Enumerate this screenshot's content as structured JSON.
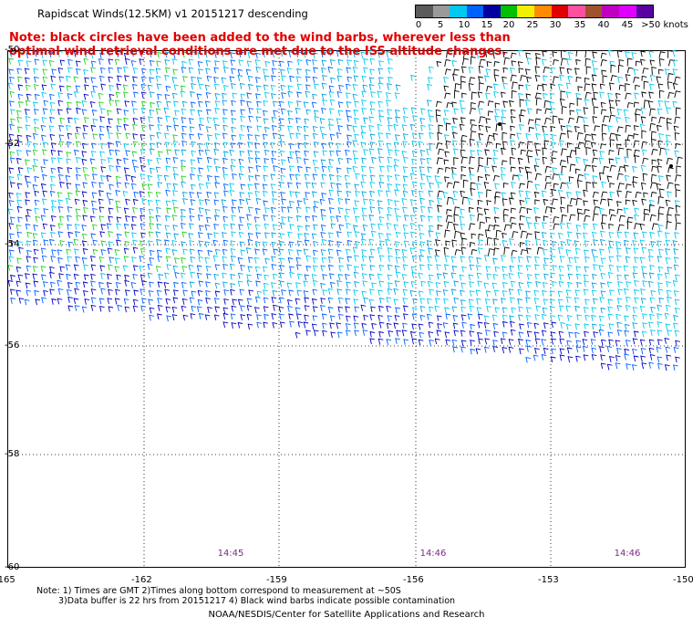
{
  "title": "Rapidscat Winds(12.5KM) v1 20151217 descending",
  "note": "Note: black circles have been added to the wind barbs, wherever less than optimal wind retrieval conditions are met due to the ISS altitude changes.",
  "legend": {
    "unit": "knots",
    "labels": [
      "0",
      "5",
      "10",
      "15",
      "20",
      "25",
      "30",
      "35",
      "40",
      "45",
      ">50 knots"
    ],
    "colors": [
      "#5a5a5a",
      "#9a9a9a",
      "#00c8f0",
      "#0060ff",
      "#0000a0",
      "#00c000",
      "#f0f000",
      "#ff8c00",
      "#e00000",
      "#ff50a0",
      "#a0522d",
      "#c000c0",
      "#e000ff",
      "#5a00a0"
    ]
  },
  "axes": {
    "lat_labels": [
      "-50",
      "-52",
      "-54",
      "-56",
      "-58",
      "-60"
    ],
    "lon_labels": [
      "-165",
      "-162",
      "-159",
      "-156",
      "-153",
      "-150"
    ]
  },
  "time_labels": [
    "14:45",
    "14:46",
    "14:46"
  ],
  "footnote_line1": "Note: 1) Times are GMT 2)Times along bottom correspond to measurement at ~50S",
  "footnote_line2": "3)Data buffer is 22 hrs from 20151217 4) Black wind barbs indicate possible contamination",
  "credit": "NOAA/NESDIS/Center for Satellite Applications and Research"
}
